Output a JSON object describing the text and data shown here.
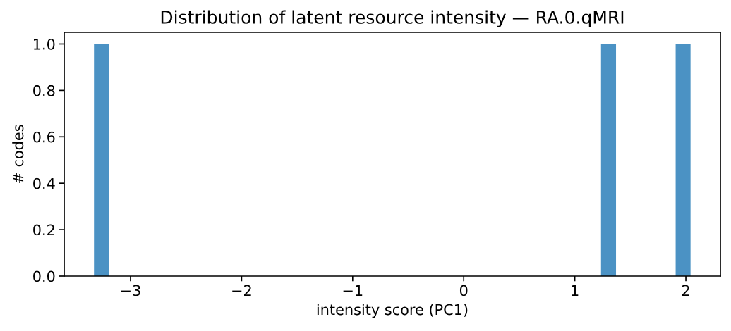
{
  "chart_data": {
    "type": "histogram",
    "title": "Distribution of latent resource intensity — RA.0.qMRI",
    "xlabel": "intensity score (PC1)",
    "ylabel": "# codes",
    "color": "#4b92c4",
    "bins": [
      -3.329,
      -3.195,
      -3.06,
      -2.926,
      -2.792,
      -2.658,
      -2.523,
      -2.389,
      -2.255,
      -2.121,
      -1.986,
      -1.852,
      -1.718,
      -1.583,
      -1.449,
      -1.315,
      -1.181,
      -1.046,
      -0.912,
      -0.778,
      -0.643,
      -0.509,
      -0.375,
      -0.241,
      -0.106,
      0.028,
      0.162,
      0.296,
      0.431,
      0.565,
      0.699,
      0.834,
      0.968,
      1.102,
      1.236,
      1.371,
      1.505,
      1.639,
      1.773,
      1.908,
      2.042
    ],
    "values": [
      1,
      0,
      0,
      0,
      0,
      0,
      0,
      0,
      0,
      0,
      0,
      0,
      0,
      0,
      0,
      0,
      0,
      0,
      0,
      0,
      0,
      0,
      0,
      0,
      0,
      0,
      0,
      0,
      0,
      0,
      0,
      0,
      0,
      0,
      1,
      0,
      0,
      0,
      0,
      1
    ],
    "xlim": [
      -3.597,
      2.311
    ],
    "xticks": [
      {
        "value": -3,
        "label": "−3"
      },
      {
        "value": -2,
        "label": "−2"
      },
      {
        "value": -1,
        "label": "−1"
      },
      0,
      1,
      2
    ],
    "ylim": [
      0,
      1.05
    ],
    "yticks": [
      {
        "value": 0,
        "label": "0.0"
      },
      {
        "value": 0.2,
        "label": "0.2"
      },
      {
        "value": 0.4,
        "label": "0.4"
      },
      {
        "value": 0.6,
        "label": "0.6"
      },
      {
        "value": 0.8,
        "label": "0.8"
      },
      {
        "value": 1,
        "label": "1.0"
      }
    ]
  }
}
